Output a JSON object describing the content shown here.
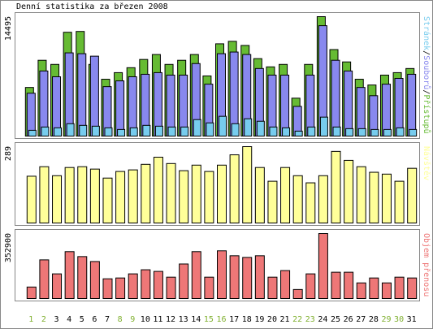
{
  "chart_data": [
    {
      "type": "bar",
      "title": "Denní statistika za březen 2008",
      "categories": [
        "1",
        "2",
        "3",
        "4",
        "5",
        "6",
        "7",
        "8",
        "9",
        "10",
        "11",
        "12",
        "13",
        "14",
        "15",
        "16",
        "17",
        "18",
        "19",
        "20",
        "21",
        "22",
        "23",
        "24",
        "25",
        "26",
        "27",
        "28",
        "29",
        "30",
        "31"
      ],
      "category_colors": [
        "#80b030",
        "#80b030",
        "#000",
        "#000",
        "#000",
        "#000",
        "#000",
        "#80b030",
        "#80b030",
        "#000",
        "#000",
        "#000",
        "#000",
        "#000",
        "#80b030",
        "#80b030",
        "#000",
        "#000",
        "#000",
        "#000",
        "#000",
        "#80b030",
        "#80b030",
        "#000",
        "#000",
        "#000",
        "#000",
        "#000",
        "#80b030",
        "#80b030",
        "#000"
      ],
      "ylim": [
        0,
        14495
      ],
      "yticks": [
        14495
      ],
      "legend_separator": "/",
      "series": [
        {
          "name": "Přístupů",
          "color": "#66bb33",
          "values": [
            5900,
            9200,
            8700,
            12600,
            12700,
            8700,
            6900,
            7700,
            8300,
            9300,
            9900,
            8700,
            9200,
            9900,
            7300,
            11200,
            11500,
            11000,
            9400,
            8400,
            8700,
            4600,
            8700,
            14495,
            10500,
            9000,
            6900,
            6200,
            7400,
            7700,
            8200
          ]
        },
        {
          "name": "Souborů",
          "color": "#8888ee",
          "values": [
            5200,
            7900,
            7200,
            10100,
            10000,
            9700,
            6000,
            6700,
            7200,
            7500,
            7700,
            7400,
            7400,
            8800,
            6300,
            10000,
            10200,
            9900,
            8200,
            7400,
            7400,
            3600,
            7400,
            13400,
            9200,
            7900,
            5900,
            4900,
            6300,
            7000,
            7500
          ]
        },
        {
          "name": "Stránek",
          "color": "#77ccee",
          "values": [
            700,
            1100,
            1000,
            1500,
            1300,
            1200,
            1000,
            800,
            1000,
            1300,
            1200,
            1100,
            1100,
            2000,
            1600,
            2400,
            1500,
            2100,
            1800,
            1100,
            1000,
            600,
            1100,
            2300,
            1100,
            900,
            900,
            800,
            800,
            1000,
            800
          ]
        }
      ]
    },
    {
      "type": "bar",
      "ylim": [
        0,
        289
      ],
      "yticks": [
        289
      ],
      "series": [
        {
          "name": "Návštěv",
          "color": "#ffff99",
          "values": [
            177,
            213,
            179,
            210,
            213,
            204,
            170,
            195,
            201,
            222,
            249,
            225,
            198,
            219,
            195,
            219,
            258,
            289,
            210,
            158,
            210,
            179,
            152,
            179,
            271,
            237,
            213,
            192,
            185,
            158,
            207
          ]
        }
      ]
    },
    {
      "type": "bar",
      "ylim": [
        0,
        352900
      ],
      "yticks": [
        352900
      ],
      "series": [
        {
          "name": "Objem přenosu",
          "color": "#ee7777",
          "values": [
            62500,
            210000,
            134000,
            254600,
            227800,
            201000,
            107200,
            111700,
            134000,
            156300,
            147400,
            116100,
            187600,
            254600,
            116100,
            259100,
            232300,
            223400,
            232300,
            116100,
            151900,
            49100,
            134000,
            352900,
            142900,
            142900,
            84900,
            111700,
            84900,
            116100,
            111700
          ]
        }
      ]
    }
  ]
}
